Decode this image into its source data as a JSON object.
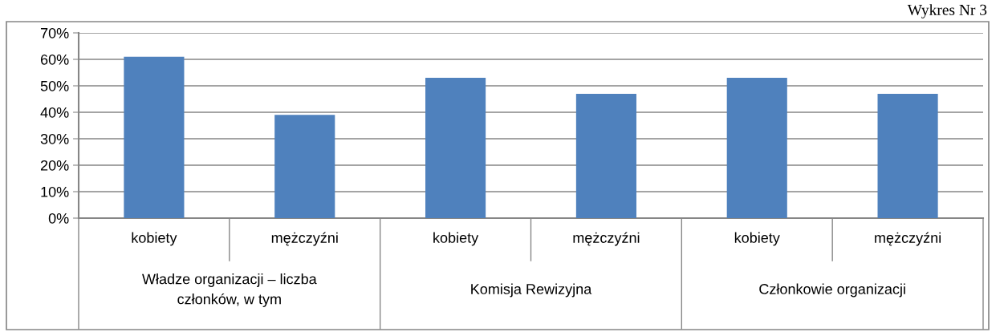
{
  "chart_data": {
    "type": "bar",
    "categories": [
      "kobiety",
      "mężczyźni",
      "kobiety",
      "mężczyźni",
      "kobiety",
      "mężczyźni"
    ],
    "values": [
      61,
      39,
      53,
      47,
      53,
      47
    ],
    "color": "#4f81bd",
    "ylim": [
      0,
      70
    ],
    "yticks": [
      {
        "value": 0,
        "label": "0%"
      },
      {
        "value": 10,
        "label": "10%"
      },
      {
        "value": 20,
        "label": "20%"
      },
      {
        "value": 30,
        "label": "30%"
      },
      {
        "value": 40,
        "label": "40%"
      },
      {
        "value": 50,
        "label": "50%"
      },
      {
        "value": 60,
        "label": "60%"
      },
      {
        "value": 70,
        "label": "70%"
      }
    ],
    "grid": "y",
    "annotations": [
      "Władze organizacji – liczba\nczłonków, w tym",
      "Komisja Rewizyjna",
      "Członkowie organizacji",
      "Wykres Nr 3"
    ]
  }
}
